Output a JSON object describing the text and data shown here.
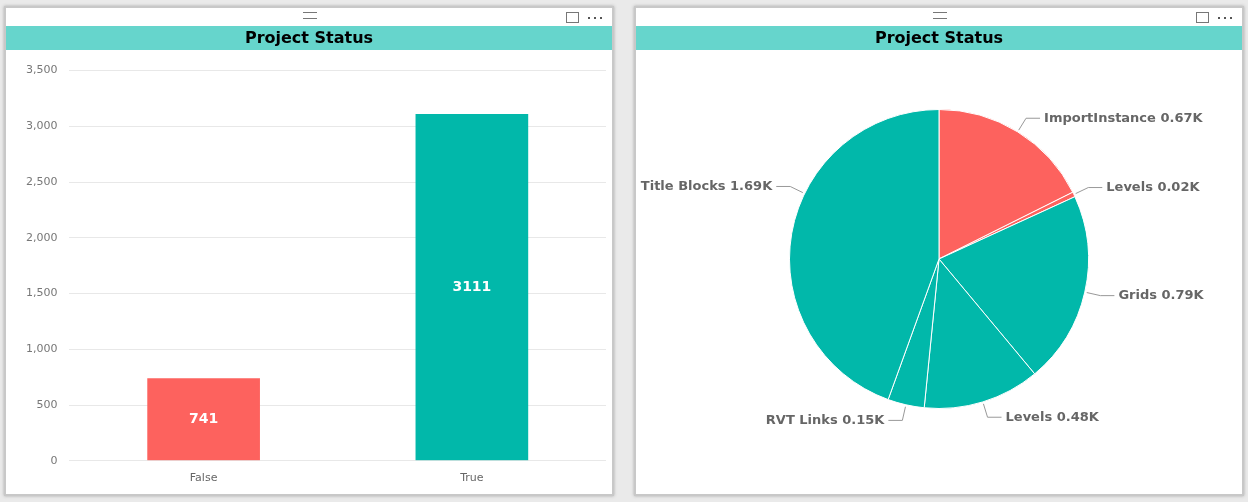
{
  "chart_data": [
    {
      "type": "bar",
      "title": "Project Status",
      "categories": [
        "False",
        "True"
      ],
      "values": [
        741,
        3111
      ],
      "colors": [
        "#fd625e",
        "#01b8aa"
      ],
      "ylim": [
        0,
        3500
      ],
      "yticks": [
        {
          "value": 0,
          "label": "0"
        },
        {
          "value": 500,
          "label": "500"
        },
        {
          "value": 1000,
          "label": "1,000"
        },
        {
          "value": 1500,
          "label": "1,500"
        },
        {
          "value": 2000,
          "label": "2,000"
        },
        {
          "value": 2500,
          "label": "2,500"
        },
        {
          "value": 3000,
          "label": "3,000"
        },
        {
          "value": 3500,
          "label": "3,500"
        }
      ],
      "grid": "y",
      "data_labels": true,
      "legend": false
    },
    {
      "type": "pie",
      "title": "Project Status",
      "categories": [
        "ImportInstance",
        "Levels",
        "Grids",
        "Levels",
        "RVT Links",
        "Title Blocks"
      ],
      "values": [
        670,
        20,
        790,
        480,
        150,
        1690
      ],
      "value_labels": [
        "0.67K",
        "0.02K",
        "0.79K",
        "0.48K",
        "0.15K",
        "1.69K"
      ],
      "colors": [
        "#fd625e",
        "#fd625e",
        "#01b8aa",
        "#01b8aa",
        "#01b8aa",
        "#01b8aa"
      ],
      "legend": false
    }
  ]
}
